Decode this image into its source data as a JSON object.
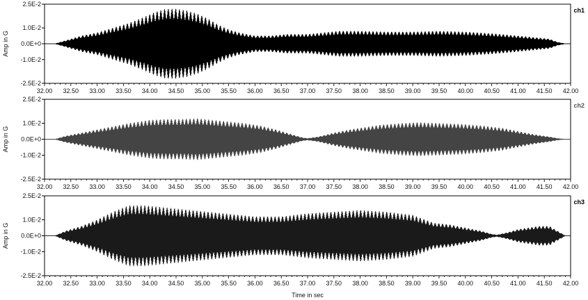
{
  "chart_data": {
    "type": "line",
    "xlabel": "Time in sec",
    "ylabel": "Amp in G",
    "xlim": [
      32.0,
      42.0
    ],
    "ylim": [
      -0.025,
      0.025
    ],
    "x_ticks": [
      "32.00",
      "32.50",
      "33.00",
      "33.50",
      "34.00",
      "34.50",
      "35.00",
      "35.50",
      "36.00",
      "36.50",
      "37.00",
      "37.50",
      "38.00",
      "38.50",
      "39.00",
      "39.50",
      "40.00",
      "40.50",
      "41.00",
      "41.50",
      "42.00"
    ],
    "y_ticks": [
      {
        "value": 0.025,
        "label": "2.5E-2"
      },
      {
        "value": 0.01,
        "label": "1.0E-2"
      },
      {
        "value": 0.0,
        "label": "0.0E+0"
      },
      {
        "value": -0.01,
        "label": "-1.0E-2"
      },
      {
        "value": -0.025,
        "label": "-2.5E-2"
      }
    ],
    "panels": [
      {
        "name": "ch1",
        "color": "#000000",
        "label_color": "#000000",
        "envelope": {
          "t": [
            32.0,
            32.2,
            32.4,
            32.7,
            33.0,
            33.3,
            33.6,
            33.9,
            34.1,
            34.3,
            34.5,
            34.7,
            34.9,
            35.1,
            35.3,
            35.5,
            35.7,
            36.0,
            36.3,
            36.6,
            37.0,
            37.3,
            37.6,
            38.0,
            38.5,
            39.0,
            39.5,
            40.0,
            40.5,
            41.0,
            41.3,
            41.6,
            41.75,
            41.9,
            42.0
          ],
          "amp": [
            0.0,
            0.0,
            0.002,
            0.005,
            0.007,
            0.01,
            0.013,
            0.017,
            0.02,
            0.022,
            0.022,
            0.021,
            0.019,
            0.016,
            0.012,
            0.009,
            0.007,
            0.005,
            0.005,
            0.006,
            0.006,
            0.007,
            0.008,
            0.008,
            0.0075,
            0.0075,
            0.008,
            0.0075,
            0.0065,
            0.005,
            0.004,
            0.003,
            0.001,
            0.0,
            0.0
          ]
        }
      },
      {
        "name": "ch2",
        "color": "#444444",
        "label_color": "#555555",
        "envelope": {
          "t": [
            32.0,
            32.2,
            32.4,
            32.7,
            33.0,
            33.3,
            33.6,
            34.0,
            34.3,
            34.6,
            34.9,
            35.2,
            35.5,
            35.8,
            36.1,
            36.4,
            36.7,
            36.9,
            37.0,
            37.2,
            37.5,
            37.8,
            38.1,
            38.4,
            38.8,
            39.1,
            39.5,
            39.9,
            40.3,
            40.7,
            41.0,
            41.3,
            41.6,
            41.75,
            41.9,
            42.0
          ],
          "amp": [
            0.0,
            0.0,
            0.002,
            0.004,
            0.006,
            0.008,
            0.01,
            0.012,
            0.0125,
            0.0125,
            0.013,
            0.012,
            0.011,
            0.01,
            0.0085,
            0.006,
            0.003,
            0.001,
            0.0005,
            0.0015,
            0.004,
            0.006,
            0.0075,
            0.009,
            0.01,
            0.0105,
            0.01,
            0.0095,
            0.0085,
            0.007,
            0.005,
            0.003,
            0.0015,
            0.0005,
            0.0,
            0.0
          ]
        }
      },
      {
        "name": "ch3",
        "color": "#1a1a1a",
        "label_color": "#000000",
        "envelope": {
          "t": [
            32.0,
            32.2,
            32.4,
            32.7,
            33.0,
            33.3,
            33.6,
            33.9,
            34.2,
            34.5,
            34.8,
            35.1,
            35.4,
            35.7,
            36.0,
            36.5,
            37.0,
            37.5,
            38.0,
            38.5,
            39.0,
            39.4,
            39.7,
            40.0,
            40.3,
            40.5,
            40.6,
            40.8,
            41.0,
            41.2,
            41.4,
            41.6,
            41.75,
            41.9,
            42.0
          ],
          "amp": [
            0.0,
            0.0,
            0.003,
            0.006,
            0.01,
            0.015,
            0.019,
            0.019,
            0.018,
            0.017,
            0.016,
            0.015,
            0.014,
            0.013,
            0.012,
            0.012,
            0.014,
            0.015,
            0.016,
            0.015,
            0.013,
            0.008,
            0.007,
            0.005,
            0.003,
            0.001,
            0.0005,
            0.002,
            0.004,
            0.005,
            0.006,
            0.006,
            0.003,
            0.0,
            0.0
          ]
        }
      }
    ]
  }
}
